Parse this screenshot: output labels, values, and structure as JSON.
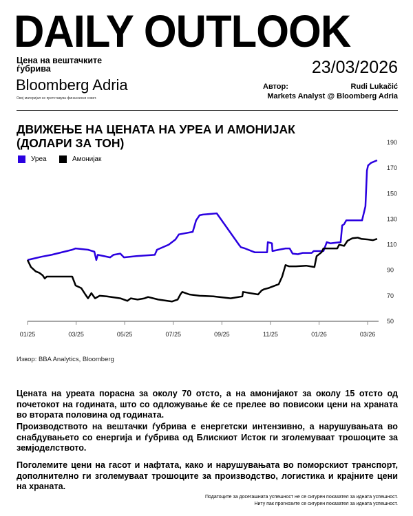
{
  "header": {
    "title": "DAILY OUTLOOK",
    "subtitle": "Цена на вештачките ѓубрива",
    "date": "23/03/2026",
    "logo": "Bloomberg Adria",
    "disclaimer": "Овој материјал не претставува финансиски совет.",
    "author_label": "Автор:",
    "author_name": "Rudi Lukačić",
    "author_role": "Markets Analyst @ Bloomberg Adria"
  },
  "chart_data": {
    "type": "line",
    "title": "ДВИЖЕЊЕ НА ЦЕНАТА НА УРЕА И АМОНИЈАК (ДОЛАРИ ЗА ТОН)",
    "xlabel": "",
    "ylabel": "",
    "x_unit": "months since 01/2025",
    "xlim": [
      0,
      14.45
    ],
    "ylim": [
      50,
      190
    ],
    "x_ticks": [
      0,
      2,
      4,
      6,
      8,
      10,
      12,
      14
    ],
    "x_tick_labels": [
      "01/25",
      "03/25",
      "05/25",
      "07/25",
      "09/25",
      "11/25",
      "01/26",
      "03/26"
    ],
    "y_ticks": [
      50,
      70,
      90,
      110,
      130,
      150,
      170,
      190
    ],
    "y_tick_labels": [
      "50",
      "70",
      "90",
      "110",
      "130",
      "150",
      "170",
      "190"
    ],
    "legend_position": "top-left",
    "series": [
      {
        "name": "Уреа",
        "color": "#2a00e0",
        "x": [
          0,
          0.23,
          0.57,
          0.99,
          1.84,
          1.98,
          2.49,
          2.75,
          2.83,
          2.89,
          3.4,
          3.54,
          3.82,
          3.97,
          4.48,
          5.24,
          5.33,
          5.81,
          6.09,
          6.23,
          6.8,
          6.94,
          7.08,
          7.22,
          7.79,
          8.7,
          8.78,
          8.95,
          9.35,
          9.86,
          9.89,
          10.06,
          10.08,
          10.34,
          10.62,
          10.79,
          10.91,
          11.13,
          11.33,
          11.7,
          11.78,
          12.18,
          12.32,
          12.46,
          12.89,
          12.95,
          13.03,
          13.12,
          13.77,
          13.91,
          13.97,
          14.02,
          14.14,
          14.39
        ],
        "values": [
          98,
          99,
          100.5,
          102,
          106,
          107,
          106,
          104.5,
          98,
          102,
          100,
          102,
          103,
          100,
          101,
          102,
          106,
          110,
          114,
          118,
          120,
          129,
          133,
          133.5,
          134.5,
          110,
          108,
          107,
          104,
          104,
          112,
          111,
          105,
          106,
          107,
          107,
          103,
          102.5,
          103.5,
          103.5,
          105,
          105,
          112,
          111,
          112,
          125,
          126,
          129,
          129,
          140,
          168,
          172,
          174,
          176
        ]
      },
      {
        "name": "Амонијак",
        "color": "#000000",
        "x": [
          0,
          0.14,
          0.34,
          0.48,
          0.62,
          0.71,
          0.79,
          1.84,
          1.98,
          2.21,
          2.38,
          2.49,
          2.63,
          2.78,
          2.97,
          3.26,
          3.82,
          4.11,
          4.25,
          4.53,
          4.82,
          4.96,
          5.38,
          5.95,
          6.18,
          6.29,
          6.37,
          6.66,
          7.08,
          7.65,
          8.36,
          8.84,
          8.87,
          9.49,
          9.63,
          9.72,
          9.92,
          10.34,
          10.48,
          10.62,
          10.76,
          11.05,
          11.47,
          11.81,
          11.9,
          12.1,
          12.18,
          12.46,
          12.75,
          12.83,
          13.03,
          13.17,
          13.37,
          13.6,
          13.74,
          14.02,
          14.22,
          14.39
        ],
        "values": [
          98,
          92.5,
          89,
          88,
          86,
          83.5,
          85,
          85,
          78,
          76,
          71,
          68,
          72,
          68,
          70,
          69.5,
          68,
          66,
          68,
          67,
          68,
          69,
          67,
          65.5,
          67,
          71,
          73,
          71,
          70,
          69.5,
          68,
          69.5,
          73,
          71,
          74,
          75,
          76,
          79,
          85,
          94,
          93,
          93,
          93.5,
          92.5,
          101,
          104,
          107,
          107,
          107,
          110,
          109,
          113,
          115,
          115.5,
          114.5,
          114,
          113.5,
          114.5
        ]
      }
    ]
  },
  "source": "Извор: BBA Analytics, Bloomberg",
  "paragraphs": [
    "Цената на уреата порасна за околу 70 отсто, а на амонијакот за околу 15 отсто од почетокот на годината, што со одложување ќе се прелее во повисоки цени на храната во втората половина од годината.",
    "Производството на вештачки ѓубрива е енергетски интензивно, а нарушувањата во снабдувањето со енергија и ѓубрива од Блискиот Исток ги зголемуваат трошоците за земјоделството.",
    "Поголемите цени на гасот и нафтата, како и нарушувањата во поморскиот транспорт, дополнително ги зголемуваат трошоците за производство, логистика и крајните цени на храната."
  ],
  "footer": {
    "line1": "Податоците за досегашната успешност не се сигурен показател за идната успешност.",
    "line2": "Ниту пак прогнозите се сигурен показател за идната успешност."
  }
}
